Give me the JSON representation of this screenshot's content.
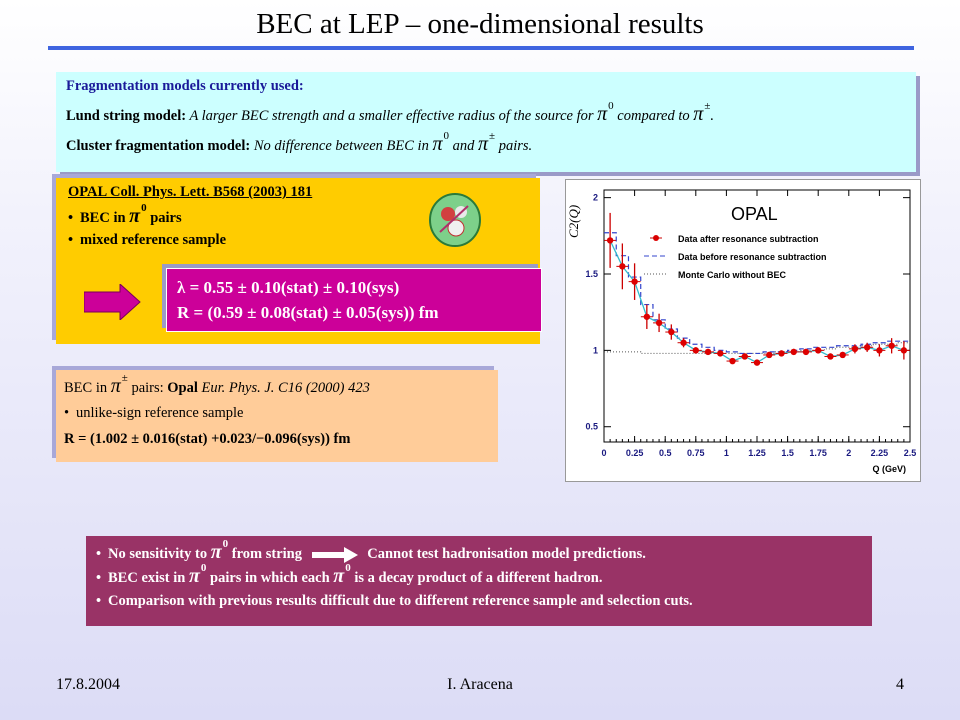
{
  "title": "BEC at LEP – one-dimensional results",
  "fragmentation": {
    "heading": "Fragmentation models currently used:",
    "lund_label": "Lund string model:",
    "lund_text_a": "A larger BEC strength and a smaller effective radius of the source for",
    "lund_text_b": "compared to",
    "lund_text_c": ".",
    "cluster_label": "Cluster fragmentation model:",
    "cluster_text_a": "No difference between BEC in",
    "cluster_text_b": "and",
    "cluster_text_c": "pairs."
  },
  "symbols": {
    "pi": "π",
    "zero": "0",
    "pm": "±"
  },
  "opal_box": {
    "reference": "OPAL Coll. Phys. Lett. B568 (2003) 181",
    "bullet1_a": "BEC in",
    "bullet1_b": "pairs",
    "bullet2": "mixed reference sample",
    "lambda_line": "λ = 0.55 ± 0.10(stat) ± 0.10(sys)",
    "r_line": "R = (0.59 ± 0.08(stat) ± 0.05(sys)) fm"
  },
  "pm_box": {
    "line1_a": "BEC in",
    "line1_b": "pairs:",
    "line1_opal": "Opal",
    "line1_ref": "Eur. Phys. J. C16 (2000) 423",
    "bullet": "unlike-sign reference sample",
    "r_line": "R = (1.002 ± 0.016(stat) +0.023/−0.096(sys)) fm"
  },
  "conclusions": {
    "c1_a": "No sensitivity to",
    "c1_b": "from string",
    "c1_c": "Cannot test hadronisation model predictions.",
    "c2_a": "BEC exist in",
    "c2_b": "pairs in which each",
    "c2_c": "is a decay product of a different hadron.",
    "c3": "Comparison with previous results difficult due to different reference sample and selection cuts."
  },
  "footer": {
    "date": "17.8.2004",
    "author": "I. Aracena",
    "page": "4"
  },
  "colors": {
    "rule": "#3f64e0",
    "frag_bg": "#ccffff",
    "opal_bg": "#ffcc00",
    "result_bg": "#cc0099",
    "pm_bg": "#ffcc99",
    "concl_bg": "#993366",
    "arrow": "#cc0099"
  },
  "chart_data": {
    "type": "scatter",
    "title": "OPAL",
    "xlabel": "Q (GeV)",
    "ylabel": "C2(Q)",
    "xlim": [
      0,
      2.5
    ],
    "ylim": [
      0.4,
      2.05
    ],
    "xticks": [
      "0",
      "0.25",
      "0.5",
      "0.75",
      "1",
      "1.25",
      "1.5",
      "1.75",
      "2",
      "2.25",
      "2.5"
    ],
    "yticks": [
      "0.5",
      "1",
      "1.5",
      "2"
    ],
    "legend": [
      "Data after resonance subtraction",
      "Data before resonance subtraction",
      "Monte Carlo without BEC"
    ],
    "series": [
      {
        "name": "Data after resonance subtraction",
        "x": [
          0.05,
          0.15,
          0.25,
          0.35,
          0.45,
          0.55,
          0.65,
          0.75,
          0.85,
          0.95,
          1.05,
          1.15,
          1.25,
          1.35,
          1.45,
          1.55,
          1.65,
          1.75,
          1.85,
          1.95,
          2.05,
          2.15,
          2.25,
          2.35,
          2.45
        ],
        "y": [
          1.72,
          1.55,
          1.45,
          1.22,
          1.18,
          1.12,
          1.05,
          1.0,
          0.99,
          0.98,
          0.93,
          0.96,
          0.92,
          0.97,
          0.98,
          0.99,
          0.99,
          1.0,
          0.96,
          0.97,
          1.01,
          1.02,
          1.0,
          1.03,
          1.0
        ],
        "err": [
          0.18,
          0.15,
          0.12,
          0.08,
          0.06,
          0.05,
          0.03,
          0.02,
          0.02,
          0.02,
          0.02,
          0.02,
          0.02,
          0.02,
          0.02,
          0.02,
          0.02,
          0.02,
          0.02,
          0.02,
          0.03,
          0.03,
          0.04,
          0.05,
          0.06
        ]
      },
      {
        "name": "Data before resonance subtraction",
        "x": [
          0.0,
          0.1,
          0.2,
          0.3,
          0.4,
          0.5,
          0.6,
          0.7,
          0.8,
          0.9,
          1.0,
          1.1,
          1.2,
          1.3,
          1.4,
          1.5,
          1.6,
          1.7,
          1.8,
          1.9,
          2.0,
          2.1,
          2.2,
          2.3,
          2.4,
          2.5
        ],
        "y": [
          1.77,
          1.62,
          1.48,
          1.3,
          1.2,
          1.14,
          1.08,
          1.04,
          1.02,
          1.0,
          0.99,
          0.98,
          0.98,
          0.99,
          0.99,
          1.0,
          1.01,
          1.02,
          1.02,
          1.03,
          1.03,
          1.04,
          1.05,
          1.06,
          1.06,
          1.06
        ]
      },
      {
        "name": "Monte Carlo without BEC",
        "x": [
          0.0,
          0.1,
          0.2,
          0.3,
          0.4,
          0.5,
          0.6,
          0.7,
          0.8,
          0.9,
          1.0,
          1.1,
          1.2,
          1.3,
          1.4,
          1.5,
          1.6,
          1.7,
          1.8,
          1.9,
          2.0,
          2.1,
          2.2,
          2.3,
          2.4,
          2.5
        ],
        "y": [
          0.99,
          0.99,
          0.99,
          0.98,
          0.98,
          0.98,
          0.98,
          0.98,
          0.98,
          0.98,
          0.98,
          0.98,
          0.98,
          0.98,
          0.99,
          0.99,
          1.0,
          1.0,
          1.01,
          1.02,
          1.02,
          1.03,
          1.04,
          1.04,
          1.05,
          1.05
        ]
      }
    ]
  }
}
